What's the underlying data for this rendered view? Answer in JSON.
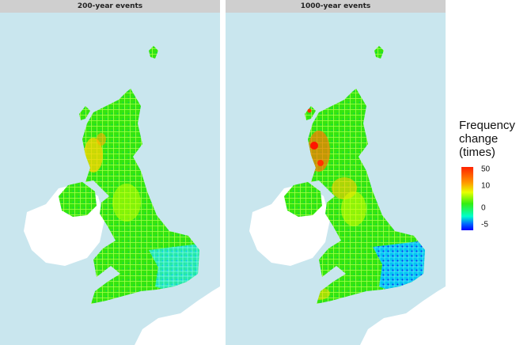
{
  "panels": [
    {
      "title": "200-year events"
    },
    {
      "title": "1000-year events"
    }
  ],
  "legend": {
    "title_lines": [
      "Frequency",
      "change",
      "(times)"
    ],
    "ticks": [
      "50",
      "10",
      "0",
      "-5"
    ]
  },
  "colors": {
    "sea": "#c9e6ee",
    "land_other": "#ffffff",
    "header": "#cfcfcf",
    "increase_high": "#ff2200",
    "increase": "#ffdd00",
    "no_change": "#33ee11",
    "decrease": "#00e6ff",
    "decrease_high": "#0033ff"
  }
}
